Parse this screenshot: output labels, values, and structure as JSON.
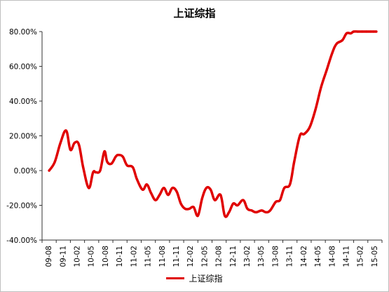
{
  "chart_data": {
    "type": "line",
    "title": "上证综指",
    "xlabel": "",
    "ylabel": "",
    "ylim": [
      -40,
      80
    ],
    "yticks": [
      80,
      60,
      40,
      20,
      0,
      -20,
      -40
    ],
    "ytick_labels": [
      "80.00%",
      "60.00%",
      "40.00%",
      "20.00%",
      "0.00%",
      "-20.00%",
      "-40.00%"
    ],
    "x_tick_labels": [
      "09-08",
      "09-11",
      "10-02",
      "10-05",
      "10-08",
      "10-11",
      "11-02",
      "11-05",
      "11-08",
      "11-11",
      "12-02",
      "12-05",
      "12-08",
      "12-11",
      "13-02",
      "13-05",
      "13-08",
      "13-11",
      "14-02",
      "14-05",
      "14-08",
      "14-11",
      "15-02",
      "15-05"
    ],
    "grid": false,
    "legend_position": "bottom",
    "series": [
      {
        "name": "上证综指",
        "color": "#e00000",
        "x": [
          0,
          0.4,
          0.8,
          1.2,
          1.5,
          1.8,
          2.1,
          2.4,
          2.8,
          3.1,
          3.3,
          3.6,
          3.9,
          4.1,
          4.4,
          4.7,
          4.9,
          5.2,
          5.5,
          5.9,
          6.2,
          6.6,
          6.9,
          7.2,
          7.5,
          7.8,
          8.1,
          8.4,
          8.7,
          9.0,
          9.3,
          9.6,
          9.9,
          10.2,
          10.5,
          10.8,
          11.1,
          11.4,
          11.7,
          12.1,
          12.4,
          12.7,
          13.0,
          13.3,
          13.7,
          14.0,
          14.3,
          14.6,
          15.0,
          15.3,
          15.6,
          16.0,
          16.3,
          16.6,
          17.0,
          17.3,
          17.7,
          18.0,
          18.4,
          18.8,
          19.2,
          19.6,
          20.0,
          20.3,
          20.7,
          21.0,
          21.3,
          21.5,
          21.8,
          22.1,
          22.4,
          22.7,
          22.9,
          23.1
        ],
        "values": [
          0,
          5,
          16,
          23,
          12,
          16,
          15,
          2,
          -10,
          -1,
          -1,
          0,
          11,
          5,
          4,
          8,
          9,
          8,
          3,
          2,
          -5,
          -11,
          -8,
          -13,
          -17,
          -14,
          -10,
          -14,
          -10,
          -12,
          -19,
          -22,
          -22,
          -21,
          -26,
          -16,
          -10,
          -11,
          -17,
          -14,
          -26,
          -24,
          -19,
          -20,
          -17,
          -22,
          -23,
          -24,
          -23,
          -24,
          -23,
          -18,
          -17,
          -10,
          -8,
          5,
          20,
          21,
          25,
          35,
          48,
          58,
          68,
          73,
          75,
          79,
          79,
          80,
          80,
          80,
          80,
          80,
          80,
          80
        ]
      }
    ]
  }
}
